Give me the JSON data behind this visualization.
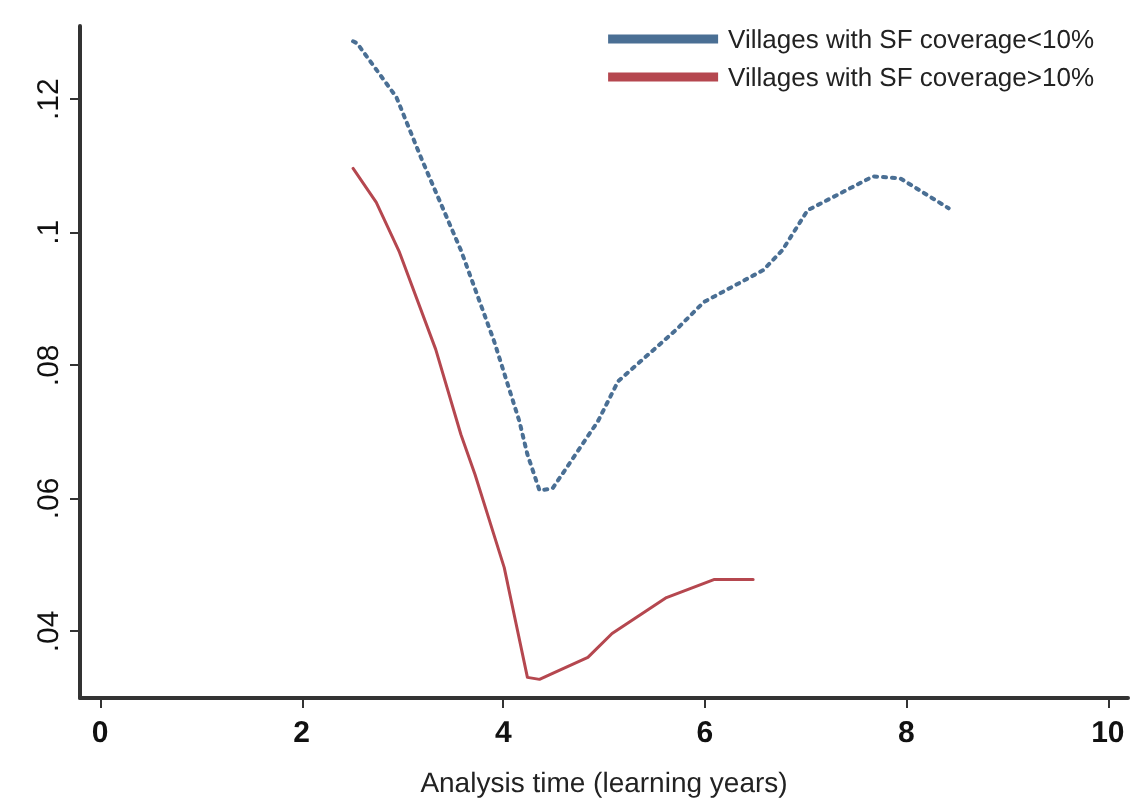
{
  "chart_data": {
    "type": "line",
    "xlabel": "Analysis time (learning years)",
    "xlim": [
      -0.2,
      10.2
    ],
    "xticks": [
      0,
      2,
      4,
      6,
      8,
      10
    ],
    "ylim": [
      0.03,
      0.131
    ],
    "yticks": [
      {
        "value": 0.04,
        "label": ".04"
      },
      {
        "value": 0.06,
        "label": ".06"
      },
      {
        "value": 0.08,
        "label": ".08"
      },
      {
        "value": 0.1,
        "label": ".1"
      },
      {
        "value": 0.12,
        "label": ".12"
      }
    ],
    "grid": false,
    "legend": "top right",
    "marker": "none",
    "series": [
      {
        "name": "Villages with SF coverage<10%",
        "color": "#4a6f94",
        "line_style": "dotted",
        "x": [
          2.51,
          2.55,
          2.94,
          3.19,
          3.58,
          3.91,
          4.16,
          4.24,
          4.36,
          4.49,
          4.94,
          5.14,
          5.72,
          5.99,
          6.58,
          6.77,
          7.02,
          7.67,
          7.94,
          8.42
        ],
        "values": [
          0.1287,
          0.1284,
          0.1203,
          0.111,
          0.0973,
          0.0836,
          0.0716,
          0.0666,
          0.0612,
          0.0615,
          0.0716,
          0.0776,
          0.0854,
          0.0895,
          0.0943,
          0.0973,
          0.1033,
          0.1084,
          0.1081,
          0.1036
        ]
      },
      {
        "name": "Villages with SF coverage>10%",
        "color": "#b5474f",
        "line_style": "solid",
        "x": [
          2.51,
          2.74,
          2.97,
          3.33,
          3.58,
          3.72,
          4.01,
          4.24,
          4.36,
          4.49,
          4.84,
          5.08,
          5.62,
          6.09,
          6.48
        ],
        "values": [
          0.1096,
          0.1045,
          0.097,
          0.0824,
          0.0696,
          0.0636,
          0.0496,
          0.0331,
          0.0328,
          0.0337,
          0.0361,
          0.0397,
          0.0451,
          0.0478,
          0.0478
        ]
      }
    ]
  }
}
